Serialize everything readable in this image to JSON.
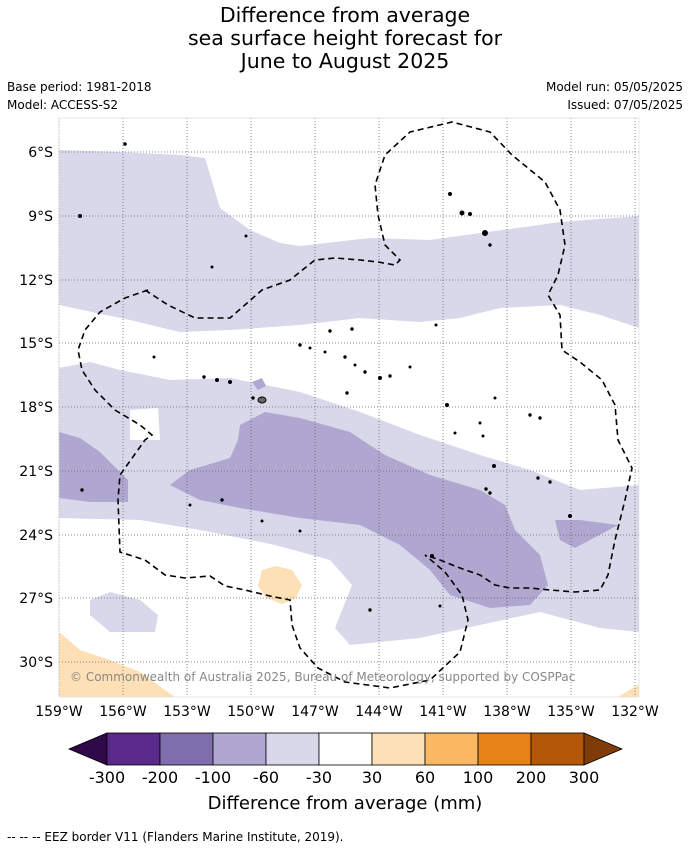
{
  "title": {
    "line1": "Difference from average",
    "line2": "sea surface height forecast for",
    "line3": "June to August 2025"
  },
  "meta": {
    "base_period": "Base period: 1981-2018",
    "model": "Model: ACCESS-S2",
    "model_run": "Model run: 05/05/2025",
    "issued": "Issued: 07/05/2025"
  },
  "map": {
    "lon_labels": [
      "159°W",
      "156°W",
      "153°W",
      "150°W",
      "147°W",
      "144°W",
      "141°W",
      "138°W",
      "135°W",
      "132°W"
    ],
    "lat_labels": [
      "6°S",
      "9°S",
      "12°S",
      "15°S",
      "18°S",
      "21°S",
      "24°S",
      "27°S",
      "30°S"
    ],
    "copyright": "© Commonwealth of Australia 2025, Bureau of Meteorology, supported by COSPPac",
    "land_color": "#000000",
    "eez_style": "dashed"
  },
  "colorbar": {
    "title": "Difference from average (mm)",
    "labels": [
      "-300",
      "-200",
      "-100",
      "-60",
      "-30",
      "30",
      "60",
      "100",
      "200",
      "300"
    ],
    "colors": {
      "under": "#2e0a4a",
      "c1": "#5a2a8a",
      "c2": "#7f6ead",
      "c3": "#afa7d0",
      "c4": "#d8d8ea",
      "c5": "#ffffff",
      "c6": "#fee0b6",
      "c7": "#fbb863",
      "c8": "#e58316",
      "c9": "#b35806",
      "over": "#7f3b08"
    }
  },
  "footnote": "--  --  -- EEZ border V11 (Flanders Marine Institute, 2019)."
}
